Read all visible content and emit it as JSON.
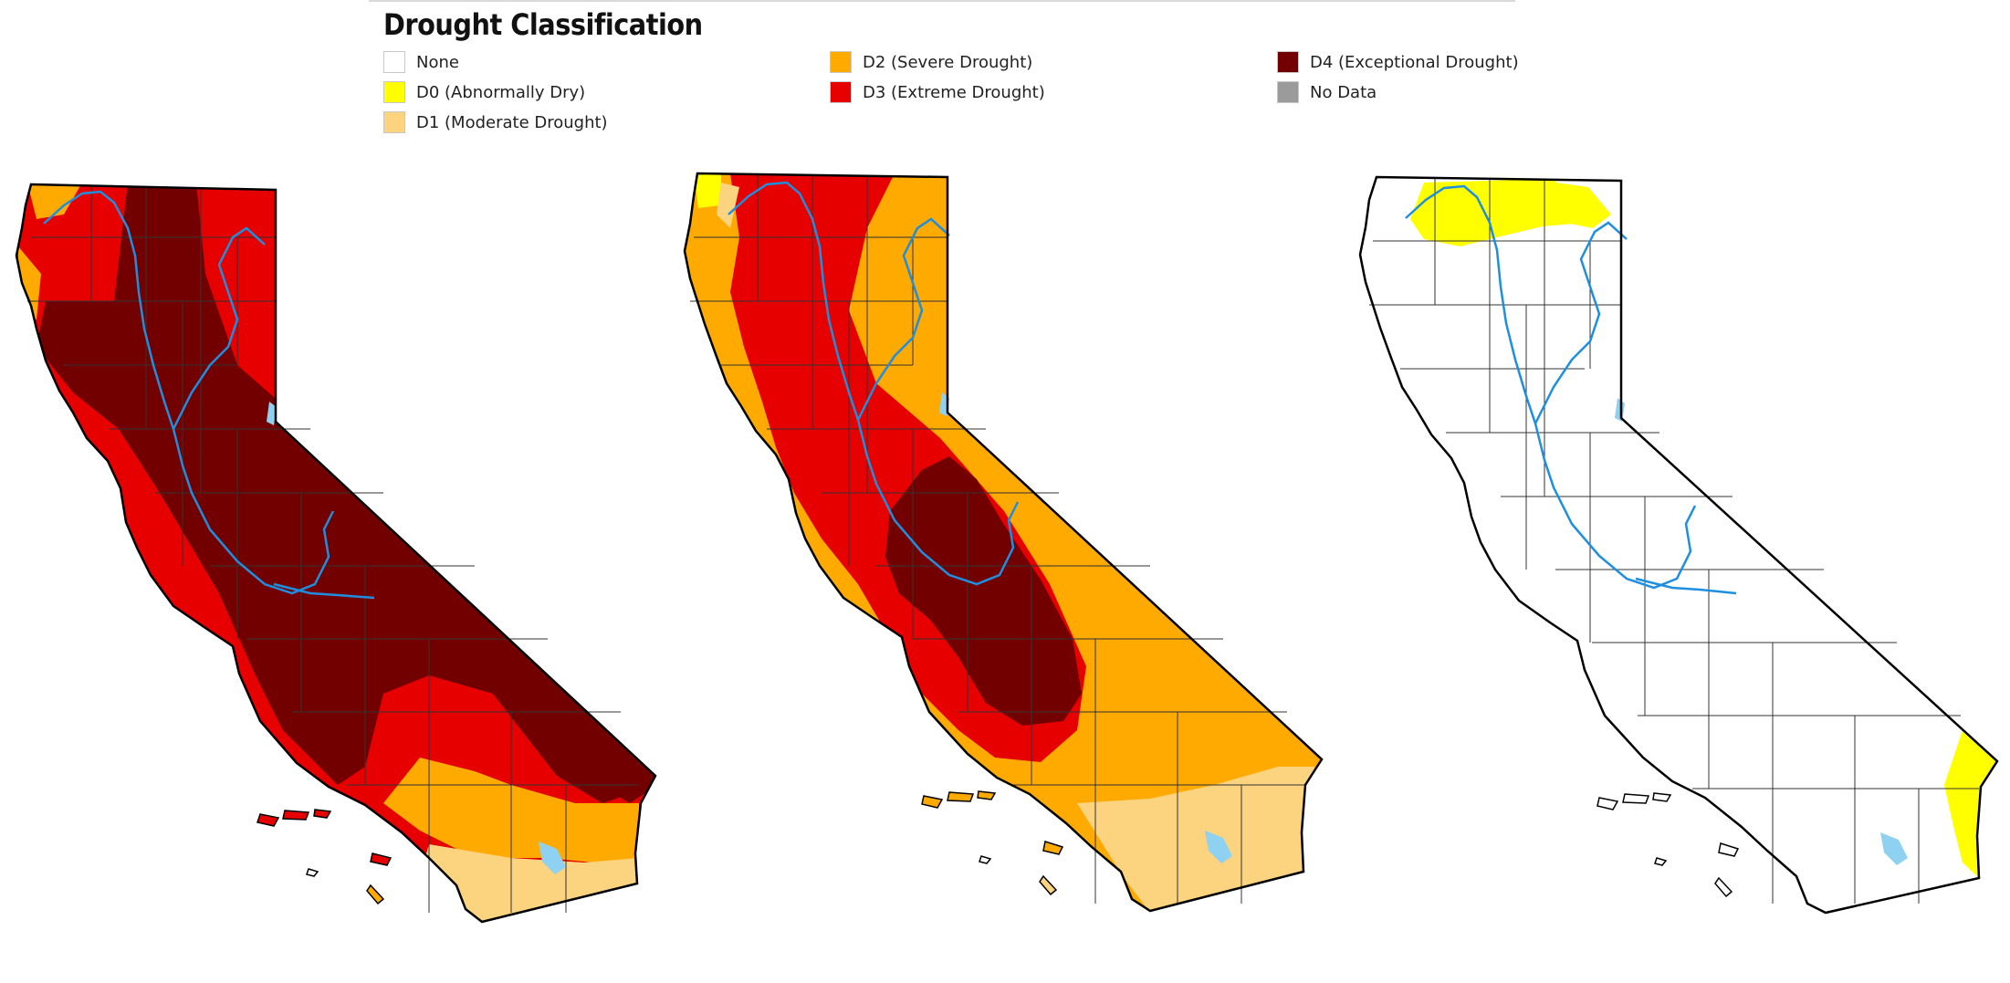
{
  "legend": {
    "title": "Drought Classification",
    "items": [
      {
        "label": "None",
        "color": "#ffffff"
      },
      {
        "label": "D0 (Abnormally Dry)",
        "color": "#ffff00"
      },
      {
        "label": "D1 (Moderate Drought)",
        "color": "#fcd37f"
      },
      {
        "label": "D2 (Severe Drought)",
        "color": "#ffaa00"
      },
      {
        "label": "D3 (Extreme Drought)",
        "color": "#e60000"
      },
      {
        "label": "D4 (Exceptional Drought)",
        "color": "#730000"
      },
      {
        "label": "No Data",
        "color": "#9b9b9b"
      }
    ]
  },
  "maps": [
    {
      "name": "map-1",
      "dominant_category": "D4 (Exceptional Drought)"
    },
    {
      "name": "map-2",
      "dominant_category": "D2 (Severe Drought)"
    },
    {
      "name": "map-3",
      "dominant_category": "None"
    }
  ],
  "colors": {
    "river": "#1e8fe0",
    "lake": "#8ed1f0",
    "border": "#000000",
    "county_line": "#333333"
  }
}
